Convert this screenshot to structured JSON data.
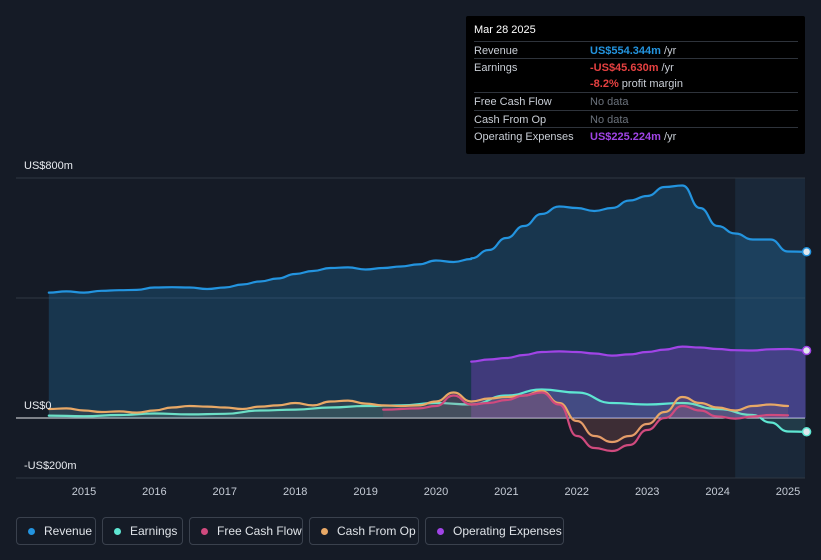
{
  "chart_data": {
    "type": "area",
    "ylim": [
      -200,
      800
    ],
    "y_axis_labels": [
      {
        "value": 800,
        "label": "US$800m"
      },
      {
        "value": 0,
        "label": "US$0"
      },
      {
        "value": -200,
        "label": "-US$200m"
      }
    ],
    "x_ticks": [
      "2015",
      "2016",
      "2017",
      "2018",
      "2019",
      "2020",
      "2021",
      "2022",
      "2023",
      "2024",
      "2025"
    ],
    "x_tick_values": [
      2015,
      2016,
      2017,
      2018,
      2019,
      2020,
      2021,
      2022,
      2023,
      2024,
      2025
    ],
    "xlim": [
      2014.45,
      2025.25
    ],
    "highlight_start": 2024.25,
    "series": [
      {
        "name": "Revenue",
        "color": "#2394df",
        "fill": true,
        "points": [
          [
            2014.5,
            418
          ],
          [
            2014.75,
            422
          ],
          [
            2015.0,
            418
          ],
          [
            2015.25,
            424
          ],
          [
            2015.5,
            426
          ],
          [
            2015.75,
            427
          ],
          [
            2016.0,
            435
          ],
          [
            2016.25,
            436
          ],
          [
            2016.5,
            435
          ],
          [
            2016.75,
            430
          ],
          [
            2017.0,
            435
          ],
          [
            2017.25,
            445
          ],
          [
            2017.5,
            455
          ],
          [
            2017.75,
            465
          ],
          [
            2018.0,
            480
          ],
          [
            2018.25,
            490
          ],
          [
            2018.5,
            500
          ],
          [
            2018.75,
            502
          ],
          [
            2019.0,
            495
          ],
          [
            2019.25,
            500
          ],
          [
            2019.5,
            505
          ],
          [
            2019.75,
            512
          ],
          [
            2020.0,
            525
          ],
          [
            2020.25,
            520
          ],
          [
            2020.5,
            530
          ],
          [
            2020.5,
            532
          ],
          [
            2020.75,
            560
          ],
          [
            2021.0,
            600
          ],
          [
            2021.25,
            640
          ],
          [
            2021.5,
            680
          ],
          [
            2021.75,
            705
          ],
          [
            2022.0,
            700
          ],
          [
            2022.25,
            690
          ],
          [
            2022.5,
            700
          ],
          [
            2022.75,
            725
          ],
          [
            2023.0,
            740
          ],
          [
            2023.25,
            770
          ],
          [
            2023.5,
            775
          ],
          [
            2023.75,
            700
          ],
          [
            2024.0,
            640
          ],
          [
            2024.25,
            615
          ],
          [
            2024.5,
            595
          ],
          [
            2024.75,
            595
          ],
          [
            2025.0,
            555
          ],
          [
            2025.25,
            554
          ]
        ]
      },
      {
        "name": "Earnings",
        "color": "#5ee6d2",
        "fill": false,
        "points": [
          [
            2014.5,
            8
          ],
          [
            2015.0,
            6
          ],
          [
            2015.5,
            10
          ],
          [
            2016.0,
            15
          ],
          [
            2016.5,
            12
          ],
          [
            2017.0,
            14
          ],
          [
            2017.5,
            25
          ],
          [
            2018.0,
            28
          ],
          [
            2018.5,
            35
          ],
          [
            2019.0,
            40
          ],
          [
            2019.5,
            42
          ],
          [
            2020.0,
            50
          ],
          [
            2020.5,
            45
          ],
          [
            2021.0,
            75
          ],
          [
            2021.5,
            95
          ],
          [
            2022.0,
            85
          ],
          [
            2022.5,
            50
          ],
          [
            2023.0,
            45
          ],
          [
            2023.5,
            50
          ],
          [
            2024.0,
            30
          ],
          [
            2024.5,
            10
          ],
          [
            2024.75,
            -15
          ],
          [
            2025.0,
            -45
          ],
          [
            2025.25,
            -46
          ]
        ]
      },
      {
        "name": "Free Cash Flow",
        "color": "#d04a7e",
        "fill": false,
        "points": [
          [
            2019.25,
            28
          ],
          [
            2019.75,
            32
          ],
          [
            2020.0,
            40
          ],
          [
            2020.25,
            75
          ],
          [
            2020.5,
            45
          ],
          [
            2020.75,
            50
          ],
          [
            2021.0,
            60
          ],
          [
            2021.25,
            75
          ],
          [
            2021.5,
            85
          ],
          [
            2021.75,
            45
          ],
          [
            2022.0,
            -60
          ],
          [
            2022.25,
            -100
          ],
          [
            2022.5,
            -110
          ],
          [
            2022.75,
            -90
          ],
          [
            2023.0,
            -40
          ],
          [
            2023.25,
            0
          ],
          [
            2023.5,
            40
          ],
          [
            2023.75,
            25
          ],
          [
            2024.0,
            5
          ],
          [
            2024.25,
            -2
          ],
          [
            2024.5,
            5
          ],
          [
            2024.75,
            10
          ],
          [
            2025.0,
            9
          ]
        ]
      },
      {
        "name": "Cash From Op",
        "color": "#e8a866",
        "fill": false,
        "points": [
          [
            2014.5,
            30
          ],
          [
            2014.75,
            32
          ],
          [
            2015.0,
            25
          ],
          [
            2015.25,
            20
          ],
          [
            2015.5,
            22
          ],
          [
            2015.75,
            18
          ],
          [
            2016.0,
            25
          ],
          [
            2016.25,
            35
          ],
          [
            2016.5,
            40
          ],
          [
            2016.75,
            38
          ],
          [
            2017.0,
            35
          ],
          [
            2017.25,
            30
          ],
          [
            2017.5,
            38
          ],
          [
            2017.75,
            42
          ],
          [
            2018.0,
            50
          ],
          [
            2018.25,
            42
          ],
          [
            2018.5,
            55
          ],
          [
            2018.75,
            58
          ],
          [
            2019.0,
            48
          ],
          [
            2019.25,
            42
          ],
          [
            2019.5,
            40
          ],
          [
            2019.75,
            42
          ],
          [
            2020.0,
            55
          ],
          [
            2020.25,
            85
          ],
          [
            2020.5,
            55
          ],
          [
            2020.75,
            65
          ],
          [
            2021.0,
            70
          ],
          [
            2021.25,
            75
          ],
          [
            2021.5,
            90
          ],
          [
            2021.75,
            50
          ],
          [
            2022.0,
            -10
          ],
          [
            2022.25,
            -60
          ],
          [
            2022.5,
            -80
          ],
          [
            2022.75,
            -60
          ],
          [
            2023.0,
            -20
          ],
          [
            2023.25,
            20
          ],
          [
            2023.5,
            70
          ],
          [
            2023.75,
            50
          ],
          [
            2024.0,
            35
          ],
          [
            2024.25,
            25
          ],
          [
            2024.5,
            40
          ],
          [
            2024.75,
            45
          ],
          [
            2025.0,
            40
          ]
        ]
      },
      {
        "name": "Operating Expenses",
        "color": "#a044e6",
        "fill": true,
        "points": [
          [
            2020.5,
            188
          ],
          [
            2020.75,
            195
          ],
          [
            2021.0,
            200
          ],
          [
            2021.25,
            210
          ],
          [
            2021.5,
            220
          ],
          [
            2021.75,
            222
          ],
          [
            2022.0,
            220
          ],
          [
            2022.25,
            215
          ],
          [
            2022.5,
            208
          ],
          [
            2022.75,
            212
          ],
          [
            2023.0,
            220
          ],
          [
            2023.25,
            228
          ],
          [
            2023.5,
            238
          ],
          [
            2023.75,
            235
          ],
          [
            2024.0,
            230
          ],
          [
            2024.25,
            226
          ],
          [
            2024.5,
            225
          ],
          [
            2024.75,
            229
          ],
          [
            2025.0,
            230
          ],
          [
            2025.25,
            225
          ]
        ]
      }
    ],
    "end_markers": [
      {
        "series": "Revenue",
        "x": 2025.25,
        "y": 554,
        "color": "#2394df"
      },
      {
        "series": "Earnings",
        "x": 2025.25,
        "y": -46,
        "color": "#5ee6d2"
      },
      {
        "series": "Operating Expenses",
        "x": 2025.25,
        "y": 225,
        "color": "#a044e6"
      }
    ]
  },
  "tooltip": {
    "date": "Mar 28 2025",
    "rows": [
      {
        "label": "Revenue",
        "value": "US$554.344m",
        "unit": " /yr",
        "color": "#2394df"
      },
      {
        "label": "Earnings",
        "value": "-US$45.630m",
        "unit": " /yr",
        "color": "#e64141"
      },
      {
        "label": "",
        "value": "-8.2%",
        "unit": " profit margin",
        "color": "#e64141"
      },
      {
        "label": "Free Cash Flow",
        "value": "No data",
        "unit": "",
        "color": "#6b727c"
      },
      {
        "label": "Cash From Op",
        "value": "No data",
        "unit": "",
        "color": "#6b727c"
      },
      {
        "label": "Operating Expenses",
        "value": "US$225.224m",
        "unit": " /yr",
        "color": "#a044e6"
      }
    ]
  },
  "legend": [
    {
      "label": "Revenue",
      "color": "#2394df"
    },
    {
      "label": "Earnings",
      "color": "#5ee6d2"
    },
    {
      "label": "Free Cash Flow",
      "color": "#d04a7e"
    },
    {
      "label": "Cash From Op",
      "color": "#e8a866"
    },
    {
      "label": "Operating Expenses",
      "color": "#a044e6"
    }
  ]
}
